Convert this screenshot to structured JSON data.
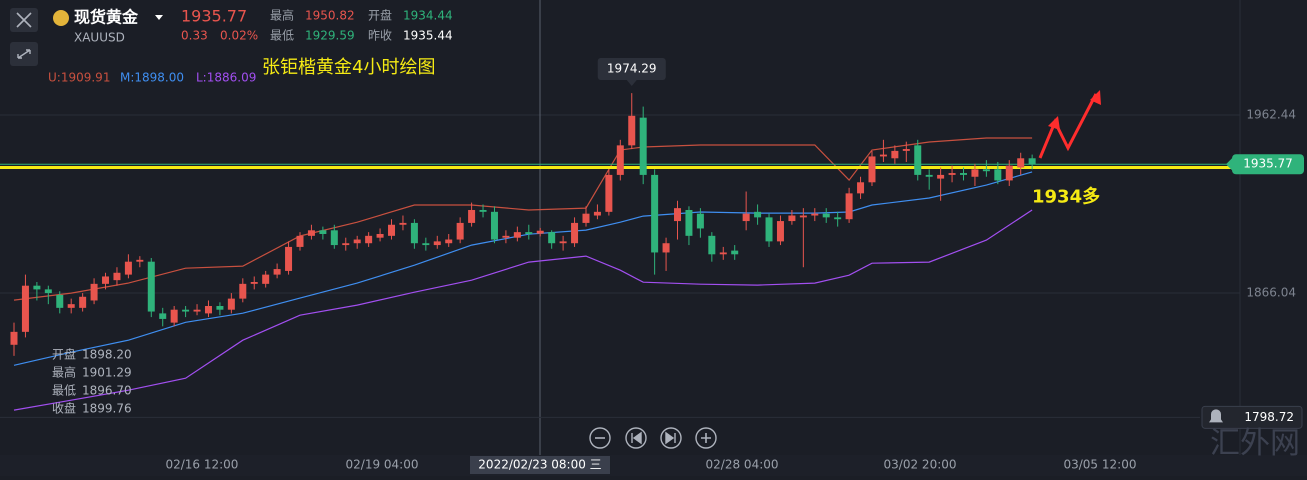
{
  "header": {
    "name": "现货黄金",
    "symbol": "XAUUSD",
    "price": "1935.77",
    "change": "0.33",
    "change_pct": "0.02%",
    "high_label": "最高",
    "high": "1950.82",
    "open_label": "开盘",
    "open": "1934.44",
    "low_label": "最低",
    "low": "1929.59",
    "prev_close_label": "昨收",
    "prev_close": "1935.44"
  },
  "watermark": "汇外网",
  "chart_data": {
    "type": "candlestick",
    "annotation": "张钜楷黄金4小时绘图",
    "up_color": "#e8554e",
    "down_color": "#2fb37b",
    "xlim": [
      -1.224,
      107.17
    ],
    "ylim": [
      1778.31,
      2024.72
    ],
    "yticks": [
      1962.44,
      1866.04
    ],
    "xticks": [
      {
        "value": 16.43,
        "label": "02/16 12:00"
      },
      {
        "value": 32.17,
        "label": "02/19 04:00"
      },
      {
        "value": 45.98,
        "label": "2022/02/23 08:00 三"
      },
      {
        "value": 63.64,
        "label": "02/28 04:00"
      },
      {
        "value": 79.2,
        "label": "03/02 20:00"
      },
      {
        "value": 94.93,
        "label": "03/05 12:00"
      }
    ],
    "crosshair_x": 45.98,
    "last_price": 1935.77,
    "alert_price": 1798.72,
    "hline": {
      "value": 1934,
      "label": "1934多",
      "color": "#f5ea14"
    },
    "crosshair_info": [
      {
        "label": "开盘",
        "value": "1898.20"
      },
      {
        "label": "最高",
        "value": "1901.29"
      },
      {
        "label": "最低",
        "value": "1896.70"
      },
      {
        "label": "收盘",
        "value": "1899.76"
      }
    ],
    "open": [
      1838,
      1845,
      1870,
      1868,
      1865,
      1858,
      1858,
      1862,
      1871,
      1873,
      1876,
      1883,
      1883,
      1855,
      1850,
      1857,
      1856,
      1855,
      1859,
      1857,
      1863,
      1871,
      1871,
      1876,
      1878,
      1891,
      1897,
      1900,
      1900,
      1892,
      1893,
      1893,
      1896,
      1897,
      1903,
      1904,
      1893,
      1892,
      1893,
      1895,
      1904,
      1911,
      1910,
      1896,
      1896,
      1899,
      1898.2,
      1899,
      1893,
      1893,
      1904,
      1908,
      1910,
      1930,
      1946,
      1961,
      1930,
      1888,
      1905,
      1911,
      1909,
      1897,
      1887,
      1889,
      1905,
      1910,
      1907,
      1894,
      1905,
      1907,
      1908,
      1909,
      1907,
      1906,
      1920,
      1926,
      1940,
      1939,
      1943,
      1946,
      1930,
      1928,
      1930,
      1931,
      1929,
      1933,
      1933,
      1927,
      1934,
      1939
    ],
    "high": [
      1850,
      1876,
      1872,
      1870,
      1867,
      1863,
      1866,
      1874,
      1877,
      1880,
      1887,
      1886,
      1885,
      1858,
      1859,
      1859,
      1860,
      1862,
      1861,
      1866,
      1874,
      1875,
      1878,
      1882,
      1894,
      1899,
      1903,
      1902,
      1903,
      1896,
      1897,
      1899,
      1901,
      1906,
      1908,
      1906,
      1896,
      1897,
      1898,
      1907,
      1915,
      1914,
      1913,
      1900,
      1902,
      1903,
      1901.29,
      1900,
      1897,
      1907,
      1913,
      1914,
      1933,
      1949,
      1974.29,
      1967,
      1933,
      1896,
      1916,
      1913,
      1912,
      1899,
      1891,
      1892,
      1921,
      1914,
      1909,
      1908,
      1911,
      1912,
      1912,
      1912,
      1910,
      1923,
      1929,
      1943,
      1949,
      1946,
      1948,
      1949,
      1933,
      1934,
      1935,
      1934,
      1936,
      1938,
      1937,
      1938,
      1942,
      1941
    ],
    "low": [
      1832,
      1842,
      1862,
      1860,
      1855,
      1855,
      1856,
      1860,
      1868,
      1870,
      1874,
      1880,
      1853,
      1848,
      1848,
      1853,
      1854,
      1853,
      1854,
      1855,
      1861,
      1868,
      1869,
      1874,
      1876,
      1889,
      1895,
      1895,
      1890,
      1889,
      1890,
      1891,
      1894,
      1895,
      1900,
      1890,
      1889,
      1890,
      1891,
      1893,
      1902,
      1907,
      1893,
      1893,
      1894,
      1895,
      1896.7,
      1890,
      1889,
      1891,
      1902,
      1906,
      1908,
      1927,
      1944,
      1925,
      1876,
      1878,
      1895,
      1892,
      1896,
      1883,
      1884,
      1884,
      1900,
      1903,
      1891,
      1892,
      1903,
      1880,
      1905,
      1904,
      1902,
      1904,
      1917,
      1924,
      1937,
      1936,
      1937,
      1927,
      1922,
      1916,
      1926,
      1927,
      1924,
      1929,
      1925,
      1924,
      1930,
      1933
    ],
    "close": [
      1845,
      1870,
      1868,
      1866,
      1858,
      1860,
      1864,
      1871,
      1875,
      1877,
      1883,
      1884,
      1856,
      1852,
      1857,
      1856,
      1857,
      1859,
      1857,
      1863,
      1871,
      1872,
      1876,
      1879,
      1891,
      1897,
      1900,
      1898,
      1892,
      1893,
      1895,
      1897,
      1898,
      1903,
      1904,
      1893,
      1892,
      1894,
      1895,
      1904,
      1911,
      1910,
      1895,
      1897,
      1899,
      1898,
      1899.76,
      1893,
      1894,
      1904,
      1909,
      1910,
      1930,
      1946,
      1962,
      1930,
      1888,
      1893,
      1912,
      1897,
      1901,
      1887,
      1888,
      1887,
      1909,
      1907,
      1894,
      1905,
      1908,
      1908,
      1909,
      1907,
      1906,
      1920,
      1926,
      1940,
      1941,
      1943,
      1944,
      1930,
      1929,
      1930,
      1931,
      1930,
      1933,
      1932,
      1927,
      1935,
      1939,
      1935.77
    ],
    "bands": [
      {
        "name": "U:1909.91",
        "color": "#c8503f",
        "x": [
          0,
          5,
          10,
          15,
          20,
          25,
          30,
          35,
          40,
          45,
          50,
          53,
          55,
          60,
          65,
          70,
          73,
          75,
          80,
          85,
          89
        ],
        "values": [
          1862.2,
          1866.0,
          1871.4,
          1879.5,
          1880.6,
          1896.9,
          1904.4,
          1913.7,
          1913.7,
          1911.0,
          1912.0,
          1943.5,
          1945.1,
          1946.2,
          1946.2,
          1946.2,
          1927.2,
          1943.5,
          1947.8,
          1950.0,
          1950.0
        ]
      },
      {
        "name": "M:1898.00",
        "color": "#3f8ef0",
        "x": [
          0,
          5,
          10,
          15,
          20,
          25,
          30,
          35,
          40,
          45,
          50,
          53,
          55,
          60,
          65,
          70,
          73,
          75,
          80,
          85,
          89
        ],
        "values": [
          1826.9,
          1834.0,
          1840.5,
          1850.2,
          1855.1,
          1863.3,
          1871.4,
          1881.1,
          1892.0,
          1897.9,
          1900.1,
          1904.4,
          1907.7,
          1909.9,
          1909.3,
          1909.3,
          1909.9,
          1913.7,
          1917.5,
          1924.5,
          1931.6
        ]
      },
      {
        "name": "L:1886.09",
        "color": "#a24ff0",
        "x": [
          0,
          5,
          10,
          15,
          20,
          25,
          30,
          35,
          40,
          45,
          50,
          53,
          55,
          60,
          65,
          70,
          73,
          75,
          80,
          85,
          89
        ],
        "values": [
          1802.6,
          1808.0,
          1813.4,
          1819.9,
          1840.5,
          1854.0,
          1859.5,
          1866.5,
          1873.0,
          1882.8,
          1886.0,
          1878.4,
          1871.9,
          1870.8,
          1870.3,
          1871.4,
          1875.7,
          1882.2,
          1882.8,
          1894.7,
          1911.0
        ]
      }
    ]
  }
}
